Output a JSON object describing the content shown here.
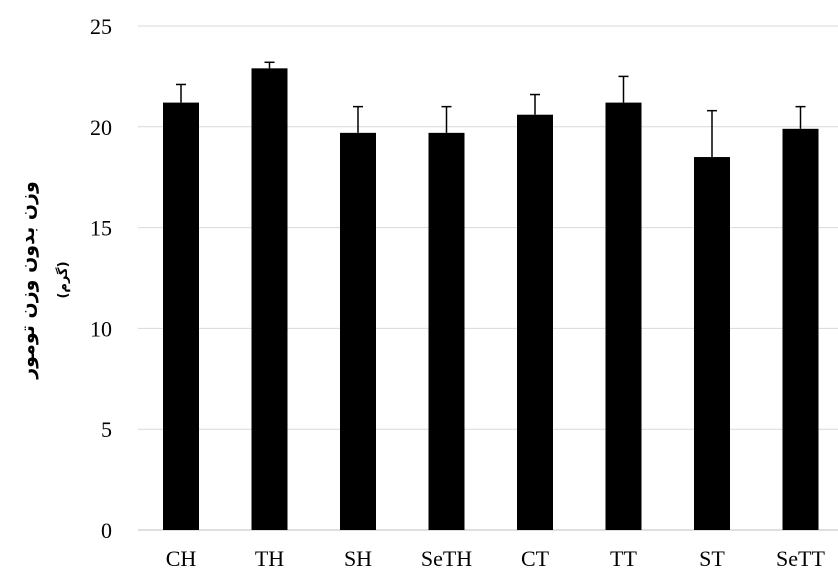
{
  "chart_data": {
    "type": "bar",
    "title": "",
    "xlabel": "",
    "ylabel": "وزن بدون وزن تومور",
    "ylabel_unit": "(گرم)",
    "categories": [
      "CH",
      "TH",
      "SH",
      "SeTH",
      "CT",
      "TT",
      "ST",
      "SeTT"
    ],
    "values": [
      21.2,
      22.9,
      19.7,
      19.7,
      20.6,
      21.2,
      18.5,
      19.9
    ],
    "error": [
      0.9,
      0.3,
      1.3,
      1.3,
      1.0,
      1.3,
      2.3,
      1.1
    ],
    "ylim": [
      0,
      25
    ],
    "yticks": [
      0,
      5,
      10,
      15,
      20,
      25
    ],
    "grid": true,
    "bar_color": "#000000",
    "grid_color": "#d9d9d9"
  }
}
